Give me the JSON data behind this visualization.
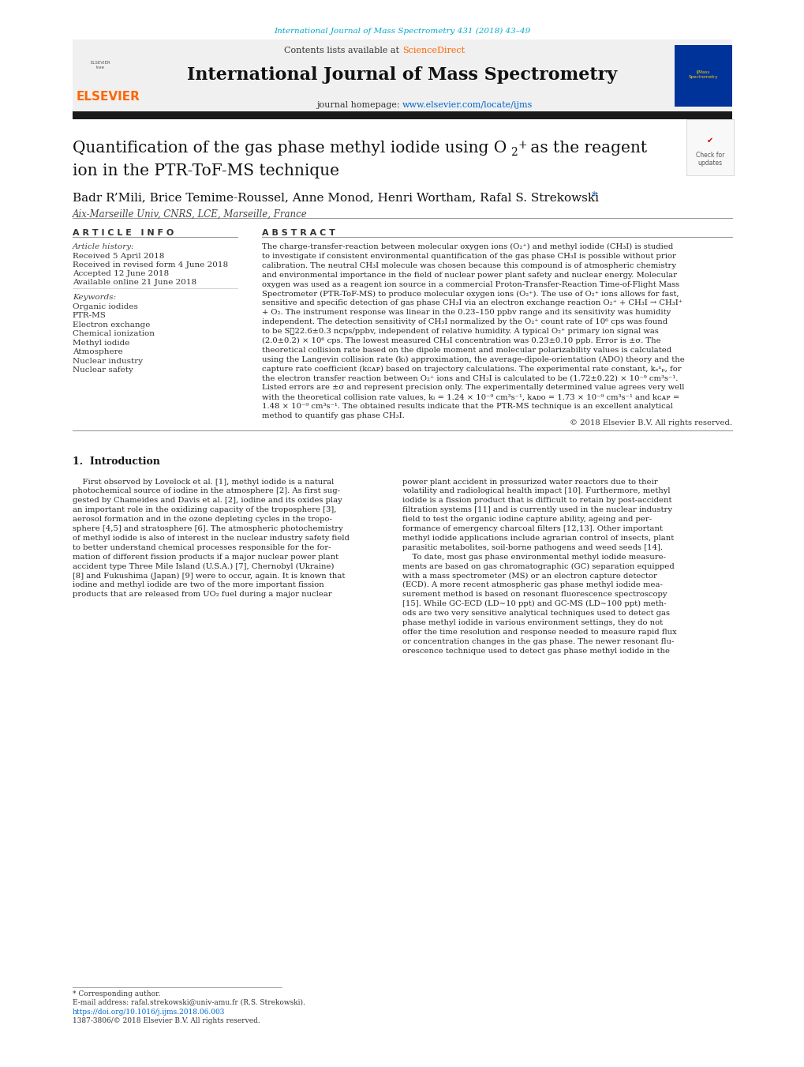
{
  "page_width": 10.2,
  "page_height": 13.51,
  "background_color": "#ffffff",
  "top_link_text": "International Journal of Mass Spectrometry 431 (2018) 43–49",
  "top_link_color": "#00aacc",
  "header_bg_color": "#f0f0f0",
  "journal_title": "International Journal of Mass Spectrometry",
  "contents_text": "Contents lists available at ",
  "sciencedirect_text": "ScienceDirect",
  "sciencedirect_color": "#ff6600",
  "homepage_text": "journal homepage: ",
  "homepage_link": "www.elsevier.com/locate/ijms",
  "homepage_link_color": "#0066cc",
  "elsevier_color": "#ff6600",
  "black_bar_color": "#1a1a1a",
  "article_info_title": "A R T I C L E   I N F O",
  "abstract_title": "A B S T R A C T",
  "article_history_label": "Article history:",
  "received": "Received 5 April 2018",
  "received_revised": "Received in revised form 4 June 2018",
  "accepted": "Accepted 12 June 2018",
  "available": "Available online 21 June 2018",
  "keywords_label": "Keywords:",
  "keywords": [
    "Organic iodides",
    "PTR-MS",
    "Electron exchange",
    "Chemical ionization",
    "Methyl iodide",
    "Atmosphere",
    "Nuclear industry",
    "Nuclear safety"
  ],
  "affiliation": "Aix-Marseille Univ, CNRS, LCE, Marseille, France",
  "copyright_text": "© 2018 Elsevier B.V. All rights reserved.",
  "footnote_text": "* Corresponding author.",
  "footnote_email": "E-mail address: rafal.strekowski@univ-amu.fr (R.S. Strekowski).",
  "footnote_doi": "https://doi.org/10.1016/j.ijms.2018.06.003",
  "footnote_issn": "1387-3806/© 2018 Elsevier B.V. All rights reserved.",
  "abstract_lines": [
    "The charge-transfer-reaction between molecular oxygen ions (O₂⁺) and methyl iodide (CH₃I) is studied",
    "to investigate if consistent environmental quantification of the gas phase CH₃I is possible without prior",
    "calibration. The neutral CH₃I molecule was chosen because this compound is of atmospheric chemistry",
    "and environmental importance in the field of nuclear power plant safety and nuclear energy. Molecular",
    "oxygen was used as a reagent ion source in a commercial Proton-Transfer-Reaction Time-of-Flight Mass",
    "Spectrometer (PTR-ToF-MS) to produce molecular oxygen ions (O₂⁺). The use of O₂⁺ ions allows for fast,",
    "sensitive and specific detection of gas phase CH₃I via an electron exchange reaction O₂⁺ + CH₃I → CH₃I⁺",
    "+ O₂. The instrument response was linear in the 0.23–150 ppbv range and its sensitivity was humidity",
    "independent. The detection sensitivity of CH₃I normalized by the O₂⁺ count rate of 10⁶ cps was found",
    "to be S≄22.6±0.3 ncps/ppbv, independent of relative humidity. A typical O₂⁺ primary ion signal was",
    "(2.0±0.2) × 10⁶ cps. The lowest measured CH₃I concentration was 0.23±0.10 ppb. Error is ±σ. The",
    "theoretical collision rate based on the dipole moment and molecular polarizability values is calculated",
    "using the Langevin collision rate (kₗ) approximation, the average-dipole-orientation (ADO) theory and the",
    "capture rate coefficient (kᴄᴀᴘ) based on trajectory calculations. The experimental rate constant, kₑˣₚ, for",
    "the electron transfer reaction between O₂⁺ ions and CH₃I is calculated to be (1.72±0.22) × 10⁻⁹ cm³s⁻¹.",
    "Listed errors are ±σ and represent precision only. The experimentally determined value agrees very well",
    "with the theoretical collision rate values, kₗ = 1.24 × 10⁻⁹ cm³s⁻¹, kᴀᴅᴏ = 1.73 × 10⁻⁹ cm³s⁻¹ and kᴄᴀᴘ =",
    "1.48 × 10⁻⁹ cm³s⁻¹. The obtained results indicate that the PTR-MS technique is an excellent analytical",
    "method to quantify gas phase CH₃I."
  ],
  "intro1_lines": [
    "    First observed by Lovelock et al. [1], methyl iodide is a natural",
    "photochemical source of iodine in the atmosphere [2]. As first sug-",
    "gested by Chameides and Davis et al. [2], iodine and its oxides play",
    "an important role in the oxidizing capacity of the troposphere [3],",
    "aerosol formation and in the ozone depleting cycles in the tropo-",
    "sphere [4,5] and stratosphere [6]. The atmospheric photochemistry",
    "of methyl iodide is also of interest in the nuclear industry safety field",
    "to better understand chemical processes responsible for the for-",
    "mation of different fission products if a major nuclear power plant",
    "accident type Three Mile Island (U.S.A.) [7], Chernobyl (Ukraine)",
    "[8] and Fukushima (Japan) [9] were to occur, again. It is known that",
    "iodine and methyl iodide are two of the more important fission",
    "products that are released from UO₂ fuel during a major nuclear"
  ],
  "intro2_lines": [
    "power plant accident in pressurized water reactors due to their",
    "volatility and radiological health impact [10]. Furthermore, methyl",
    "iodide is a fission product that is difficult to retain by post-accident",
    "filtration systems [11] and is currently used in the nuclear industry",
    "field to test the organic iodine capture ability, ageing and per-",
    "formance of emergency charcoal filters [12,13]. Other important",
    "methyl iodide applications include agrarian control of insects, plant",
    "parasitic metabolites, soil-borne pathogens and weed seeds [14].",
    "    To date, most gas phase environmental methyl iodide measure-",
    "ments are based on gas chromatographic (GC) separation equipped",
    "with a mass spectrometer (MS) or an electron capture detector",
    "(ECD). A more recent atmospheric gas phase methyl iodide mea-",
    "surement method is based on resonant fluorescence spectroscopy",
    "[15]. While GC-ECD (LD∼10 ppt) and GC-MS (LD∼100 ppt) meth-",
    "ods are two very sensitive analytical techniques used to detect gas",
    "phase methyl iodide in various environment settings, they do not",
    "offer the time resolution and response needed to measure rapid flux",
    "or concentration changes in the gas phase. The newer resonant flu-",
    "orescence technique used to detect gas phase methyl iodide in the"
  ]
}
